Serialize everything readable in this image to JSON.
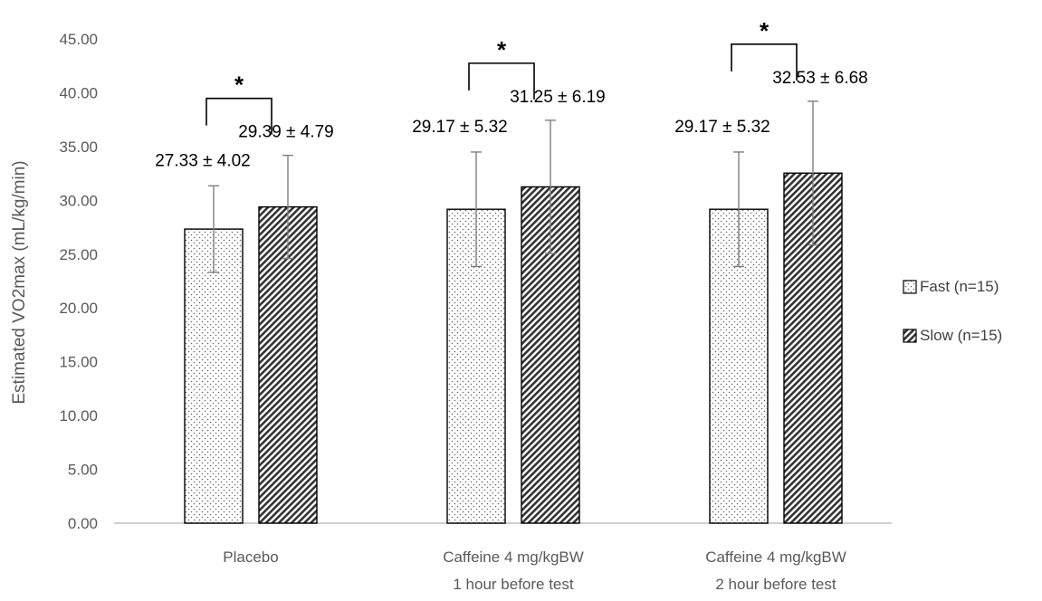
{
  "chart_data": {
    "type": "bar",
    "title": "",
    "xlabel": "",
    "ylabel": "Estimated VO2max (mL/kg/min)",
    "ylim": [
      0,
      45
    ],
    "ytick_step": 5,
    "ytick_labels": [
      "0.00",
      "5.00",
      "10.00",
      "15.00",
      "20.00",
      "25.00",
      "30.00",
      "35.00",
      "40.00",
      "45.00"
    ],
    "grid": false,
    "legend_position": "right",
    "categories": [
      [
        "Placebo"
      ],
      [
        "Caffeine 4 mg/kgBW",
        "1 hour before test"
      ],
      [
        "Caffeine 4 mg/kgBW",
        "2 hour before test"
      ]
    ],
    "series": [
      {
        "name": "Fast (n=15)",
        "pattern": "dots",
        "values": [
          27.33,
          29.17,
          29.17
        ],
        "errors": [
          4.02,
          5.32,
          5.32
        ],
        "labels": [
          "27.33 ± 4.02",
          "29.17 ± 5.32",
          "29.17 ± 5.32"
        ]
      },
      {
        "name": "Slow (n=15)",
        "pattern": "diagonal-hatch",
        "values": [
          29.39,
          31.25,
          32.53
        ],
        "errors": [
          4.79,
          6.19,
          6.68
        ],
        "labels": [
          "29.39 ± 4.79",
          "31.25 ± 6.19",
          "32.53 ± 6.68"
        ]
      }
    ],
    "significance_marker": "*",
    "colors": {
      "axis": "#bfbfbf",
      "bar_outline": "#000000",
      "error_bar": "#7f7f7f",
      "text": "#595959"
    }
  }
}
